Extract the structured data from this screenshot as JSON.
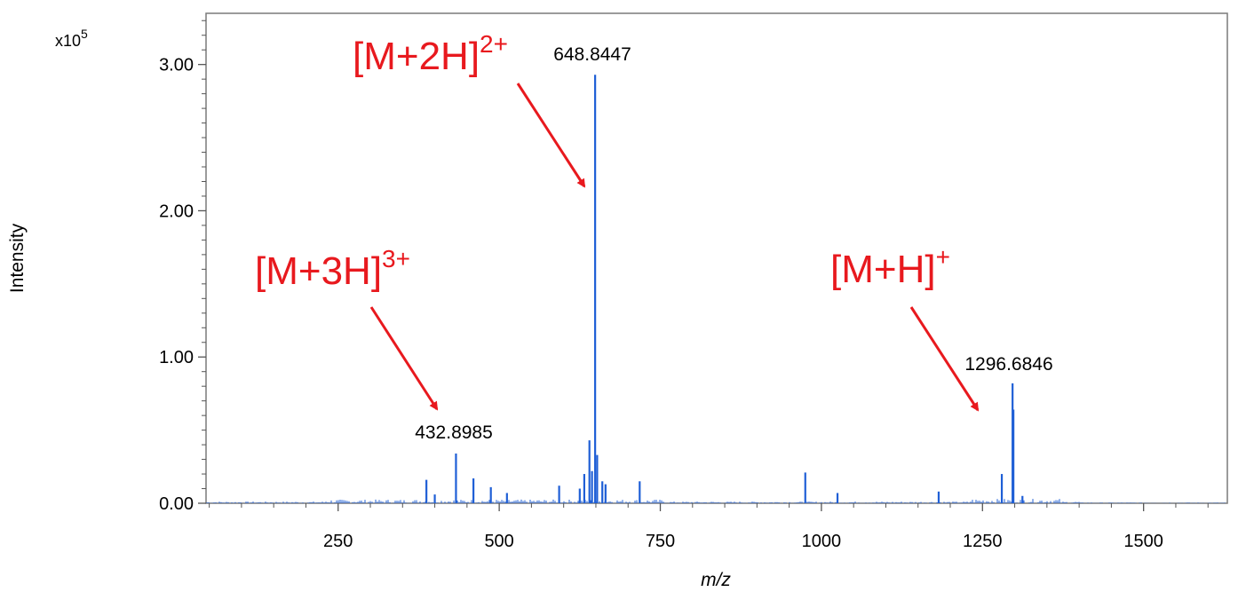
{
  "chart_data": {
    "type": "line",
    "xlabel": "m/z",
    "ylabel": "Intensity",
    "y_multiplier_label": "x10",
    "y_multiplier_exponent": "5",
    "xlim": [
      45,
      1630
    ],
    "ylim": [
      0,
      3.35
    ],
    "x_ticks": [
      "250",
      "500",
      "750",
      "1000",
      "1250",
      "1500"
    ],
    "x_tick_values": [
      250,
      500,
      750,
      1000,
      1250,
      1500
    ],
    "y_ticks": [
      "0.00",
      "1.00",
      "2.00",
      "3.00"
    ],
    "y_tick_values": [
      0,
      1,
      2,
      3
    ],
    "grid": false,
    "line_color": "#1f5fd6",
    "annotation_color": "#e8191e",
    "peaks": [
      {
        "x": 387,
        "y": 0.16
      },
      {
        "x": 400,
        "y": 0.06
      },
      {
        "x": 432.8985,
        "y": 0.34
      },
      {
        "x": 460,
        "y": 0.17
      },
      {
        "x": 487,
        "y": 0.11
      },
      {
        "x": 512,
        "y": 0.07
      },
      {
        "x": 593,
        "y": 0.12
      },
      {
        "x": 625,
        "y": 0.1
      },
      {
        "x": 632,
        "y": 0.2
      },
      {
        "x": 640,
        "y": 0.43
      },
      {
        "x": 644,
        "y": 0.22
      },
      {
        "x": 648.8447,
        "y": 2.93
      },
      {
        "x": 652,
        "y": 0.33
      },
      {
        "x": 660,
        "y": 0.15
      },
      {
        "x": 665,
        "y": 0.13
      },
      {
        "x": 718,
        "y": 0.15
      },
      {
        "x": 975,
        "y": 0.21
      },
      {
        "x": 1025,
        "y": 0.07
      },
      {
        "x": 1182,
        "y": 0.08
      },
      {
        "x": 1280,
        "y": 0.2
      },
      {
        "x": 1296.6846,
        "y": 0.82
      },
      {
        "x": 1298,
        "y": 0.64
      },
      {
        "x": 1312,
        "y": 0.05
      }
    ],
    "peak_labels": [
      {
        "text": "432.8985",
        "x": 432.8985,
        "y": 0.34
      },
      {
        "text": "648.8447",
        "x": 648.8447,
        "y": 2.93
      },
      {
        "text": "1296.6846",
        "x": 1296.6846,
        "y": 0.82
      }
    ],
    "ion_annotations": [
      {
        "base": "[M+3H]",
        "sup": "3+"
      },
      {
        "base": "[M+2H]",
        "sup": "2+"
      },
      {
        "base": "[M+H]",
        "sup": "+"
      }
    ]
  }
}
